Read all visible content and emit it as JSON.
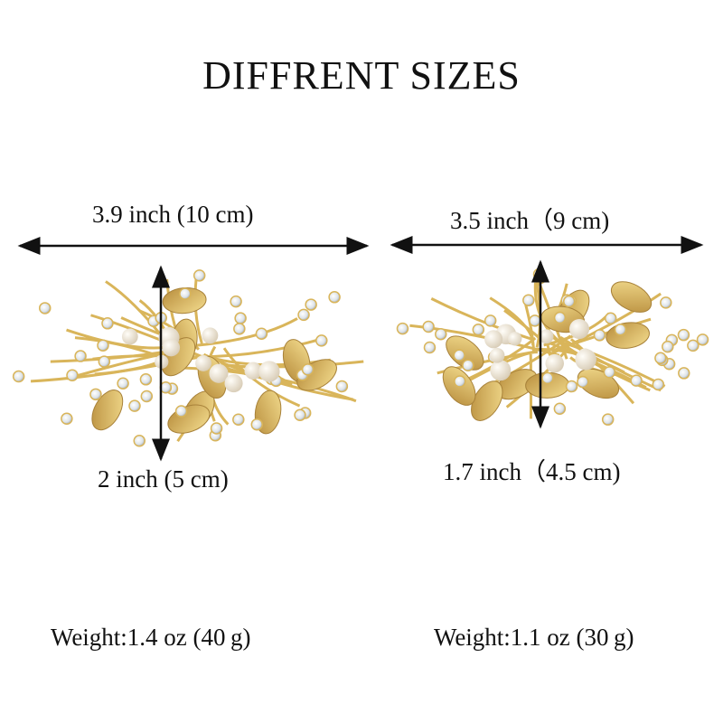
{
  "title": "DIFFRENT SIZES",
  "items": [
    {
      "width_label": "3.9 inch (10 cm)",
      "height_label": "2 inch (5 cm)",
      "weight_label": "Weight:1.4 oz (40 g)"
    },
    {
      "width_label": "3.5 inch（9 cm)",
      "height_label": "1.7 inch（4.5 cm)",
      "weight_label": "Weight:1.1 oz (30 g)"
    }
  ],
  "colors": {
    "gold": "#d9b55a",
    "gold_dark": "#a8823a",
    "pearl": "#f5efe4",
    "rhinestone": "#e8ecef"
  }
}
